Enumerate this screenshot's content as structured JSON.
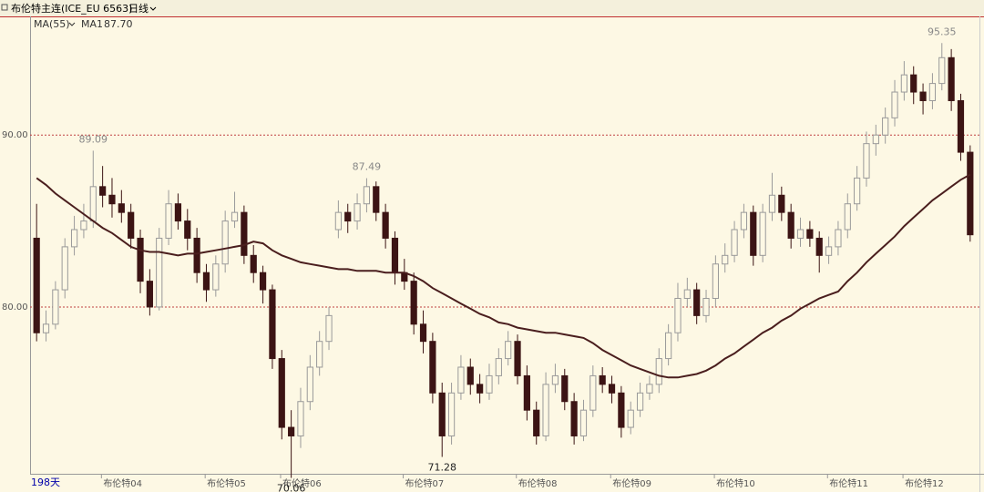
{
  "chart_data": {
    "type": "candlestick",
    "title": "布伦特主连(ICE_EU 6563)",
    "period": "日线",
    "span_label": "198天",
    "ma_label": "MA(55)",
    "up_color": "#9a9a9a",
    "down_color": "#3c1414",
    "grid": true,
    "ylim": [
      70.3,
      96.9
    ],
    "yticks": [
      {
        "value": 90,
        "label": "90.00"
      },
      {
        "value": 80,
        "label": "80.00"
      }
    ],
    "categories": [
      null,
      null,
      null,
      null,
      null,
      null,
      null,
      null,
      null,
      "布伦特04",
      null,
      null,
      null,
      null,
      null,
      null,
      null,
      null,
      null,
      null,
      "布伦特05",
      null,
      null,
      null,
      null,
      null,
      null,
      null,
      "布伦特06",
      null,
      null,
      null,
      null,
      null,
      null,
      null,
      null,
      null,
      null,
      null,
      null,
      "布伦特07",
      null,
      null,
      null,
      null,
      null,
      null,
      null,
      null,
      null,
      null,
      null,
      "布伦特08",
      null,
      null,
      null,
      null,
      null,
      null,
      null,
      null,
      null,
      "布伦特09",
      null,
      null,
      null,
      null,
      null,
      null,
      null,
      null,
      null,
      null,
      "布伦特10",
      null,
      null,
      null,
      null,
      null,
      null,
      null,
      null,
      null,
      null,
      null,
      "布伦特11",
      null,
      null,
      null,
      null,
      null,
      null,
      null,
      "布伦特12",
      null,
      null,
      null,
      null,
      null
    ],
    "ohlc": [
      [
        84,
        86,
        78,
        78.5
      ],
      [
        78.5,
        79.8,
        78,
        79
      ],
      [
        79,
        81.5,
        78.7,
        81
      ],
      [
        81,
        84,
        80.5,
        83.5
      ],
      [
        83.5,
        85.3,
        83,
        84.5
      ],
      [
        84.5,
        86,
        84,
        85
      ],
      [
        85,
        89.09,
        84.6,
        87
      ],
      [
        87,
        88.2,
        85.8,
        86.5
      ],
      [
        86.5,
        87.5,
        85.2,
        86
      ],
      [
        86,
        86.8,
        84.9,
        85.5
      ],
      [
        85.5,
        86,
        83.4,
        84
      ],
      [
        84,
        84.5,
        80.8,
        81.5
      ],
      [
        81.5,
        82.2,
        79.5,
        80
      ],
      [
        80,
        84.6,
        79.8,
        84
      ],
      [
        84,
        86.8,
        83.6,
        86
      ],
      [
        86,
        86.6,
        84.5,
        85
      ],
      [
        85,
        85.7,
        83.3,
        84
      ],
      [
        84,
        84.6,
        81.4,
        82
      ],
      [
        82,
        82.5,
        80.3,
        81
      ],
      [
        81,
        83,
        80.6,
        82.5
      ],
      [
        82.5,
        85.6,
        82,
        85
      ],
      [
        85,
        86.7,
        84.6,
        85.5
      ],
      [
        85.5,
        85.9,
        82.5,
        83
      ],
      [
        83,
        83.6,
        81.4,
        82
      ],
      [
        82,
        82.4,
        80.2,
        81
      ],
      [
        81,
        81.3,
        76.4,
        77
      ],
      [
        77,
        77.5,
        72.3,
        73
      ],
      [
        73,
        74,
        70.06,
        72.5
      ],
      [
        72.5,
        75.3,
        71.8,
        74.5
      ],
      [
        74.5,
        77.2,
        74,
        76.5
      ],
      [
        76.5,
        78.6,
        76,
        78
      ],
      [
        78,
        80,
        77.5,
        79.5
      ],
      [
        84.5,
        86.2,
        84,
        85.5
      ],
      [
        85.5,
        86,
        84.3,
        85
      ],
      [
        85,
        86.6,
        84.5,
        86
      ],
      [
        86,
        87.49,
        85.5,
        87
      ],
      [
        87,
        87.3,
        85,
        85.5
      ],
      [
        85.5,
        86,
        83.4,
        84
      ],
      [
        84,
        84.4,
        81.3,
        82
      ],
      [
        82,
        82.8,
        81,
        81.5
      ],
      [
        81.5,
        82,
        78.4,
        79
      ],
      [
        79,
        79.8,
        77.3,
        78
      ],
      [
        78,
        78.5,
        74.4,
        75
      ],
      [
        75,
        75.6,
        71.28,
        72.5
      ],
      [
        72.5,
        75.6,
        72,
        75
      ],
      [
        75,
        77.2,
        74.6,
        76.5
      ],
      [
        76.5,
        77,
        74.9,
        75.5
      ],
      [
        75.5,
        76.1,
        74.4,
        75
      ],
      [
        75,
        76.7,
        74.6,
        76
      ],
      [
        76,
        77.6,
        75.5,
        77
      ],
      [
        77,
        78.6,
        76.6,
        78
      ],
      [
        78,
        78.4,
        75.5,
        76
      ],
      [
        76,
        76.6,
        73.4,
        74
      ],
      [
        74,
        74.5,
        72,
        72.5
      ],
      [
        72.5,
        76.2,
        72.2,
        75.5
      ],
      [
        75.5,
        76.7,
        75,
        76
      ],
      [
        76,
        76.4,
        74,
        74.5
      ],
      [
        74.5,
        75,
        72,
        72.5
      ],
      [
        72.5,
        74.6,
        72.2,
        74
      ],
      [
        74,
        76.6,
        73.6,
        76
      ],
      [
        76,
        76.5,
        75,
        75.5
      ],
      [
        75.5,
        76,
        74.4,
        75
      ],
      [
        75,
        75.4,
        72.4,
        73
      ],
      [
        73,
        74.5,
        72.6,
        74
      ],
      [
        74,
        75.6,
        73.6,
        75
      ],
      [
        75,
        76,
        74.6,
        75.5
      ],
      [
        75.5,
        77.6,
        75,
        77
      ],
      [
        77,
        79,
        76.6,
        78.5
      ],
      [
        78.5,
        81.4,
        78,
        80.5
      ],
      [
        80.5,
        81.7,
        80,
        81
      ],
      [
        81,
        81.4,
        79,
        79.5
      ],
      [
        79.5,
        81,
        79.1,
        80.5
      ],
      [
        80.5,
        83,
        80,
        82.5
      ],
      [
        82.5,
        83.7,
        82,
        83
      ],
      [
        83,
        85,
        82.6,
        84.5
      ],
      [
        84.5,
        86,
        84,
        85.5
      ],
      [
        85.5,
        85.9,
        82.4,
        83
      ],
      [
        83,
        86,
        82.6,
        85.5
      ],
      [
        85.5,
        87.8,
        85,
        86.5
      ],
      [
        86.5,
        87,
        85,
        85.5
      ],
      [
        85.5,
        86,
        83.4,
        84
      ],
      [
        84,
        85.2,
        83.5,
        84.5
      ],
      [
        84.5,
        85,
        83.5,
        84
      ],
      [
        84,
        84.4,
        82,
        83
      ],
      [
        83,
        84.1,
        82.5,
        83.5
      ],
      [
        83.5,
        85,
        83,
        84.5
      ],
      [
        84.5,
        86.6,
        84,
        86
      ],
      [
        86,
        88.2,
        85.6,
        87.5
      ],
      [
        87.5,
        90.2,
        87,
        89.5
      ],
      [
        89.5,
        90.6,
        88.8,
        90
      ],
      [
        90,
        91.6,
        89.5,
        91
      ],
      [
        91,
        93.2,
        90.5,
        92.5
      ],
      [
        92.5,
        94.3,
        92,
        93.5
      ],
      [
        93.5,
        94,
        91.8,
        92.5
      ],
      [
        92.5,
        93,
        91.2,
        92
      ],
      [
        92,
        93.6,
        91.5,
        93
      ],
      [
        93,
        95.35,
        92.6,
        94.5
      ],
      [
        94.5,
        95,
        91.4,
        92
      ],
      [
        92,
        92.4,
        88.5,
        89
      ],
      [
        89,
        89.4,
        83.8,
        84.2
      ]
    ],
    "series": [
      {
        "name": "MA1",
        "color": "#4a1e1e",
        "last_label": "87.70",
        "values": [
          87.5,
          87.1,
          86.6,
          86.2,
          85.8,
          85.4,
          85.0,
          84.6,
          84.3,
          83.9,
          83.5,
          83.3,
          83.2,
          83.2,
          83.1,
          83.0,
          83.1,
          83.1,
          83.2,
          83.3,
          83.4,
          83.5,
          83.6,
          83.8,
          83.7,
          83.3,
          83.0,
          82.8,
          82.6,
          82.5,
          82.4,
          82.3,
          82.2,
          82.2,
          82.1,
          82.1,
          82.1,
          82.0,
          82.0,
          82.0,
          81.8,
          81.5,
          81.1,
          80.8,
          80.5,
          80.2,
          79.9,
          79.6,
          79.4,
          79.1,
          79.0,
          78.8,
          78.7,
          78.6,
          78.5,
          78.5,
          78.4,
          78.3,
          78.2,
          77.9,
          77.5,
          77.2,
          76.9,
          76.6,
          76.4,
          76.2,
          76.0,
          75.9,
          75.9,
          76.0,
          76.1,
          76.3,
          76.6,
          77.0,
          77.3,
          77.7,
          78.1,
          78.5,
          78.8,
          79.2,
          79.5,
          79.9,
          80.2,
          80.5,
          80.7,
          80.9,
          81.5,
          82.0,
          82.6,
          83.1,
          83.6,
          84.1,
          84.7,
          85.2,
          85.7,
          86.2,
          86.6,
          87.0,
          87.4,
          87.7
        ]
      }
    ],
    "annotations": [
      {
        "text": "89.09",
        "index": 6,
        "value": 89.09,
        "position": "above"
      },
      {
        "text": "70.06",
        "index": 27,
        "value": 70.06,
        "position": "below"
      },
      {
        "text": "87.49",
        "index": 35,
        "value": 87.49,
        "position": "above"
      },
      {
        "text": "71.28",
        "index": 43,
        "value": 71.28,
        "position": "below"
      },
      {
        "text": "95.35",
        "index": 96,
        "value": 95.35,
        "position": "above"
      }
    ]
  }
}
